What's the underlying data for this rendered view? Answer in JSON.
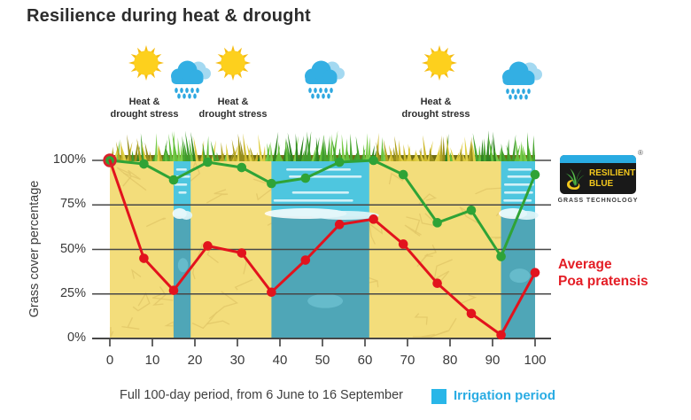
{
  "title": "Resilience during heat & drought",
  "weather": {
    "icons": [
      "sun",
      "rain-cloud",
      "sun",
      "rain-cloud",
      "sun",
      "rain-cloud"
    ],
    "stress_label": {
      "line1": "Heat &",
      "line2": "drought stress"
    }
  },
  "legend": {
    "irrigation_label": "Irrigation period",
    "swatch_color": "#29B6E8",
    "text_color": "#2AACE3"
  },
  "caption": "Full 100-day period, from 6 June to 16 September",
  "series_label": {
    "line1": "Average",
    "line2": "Poa pratensis"
  },
  "logo": {
    "brand_line1": "RESILIENT",
    "brand_line2": "BLUE",
    "registered_mark": "®",
    "subtitle": "GRASS TECHNOLOGY"
  },
  "chart_data": {
    "type": "line",
    "title": "Resilience during heat & drought",
    "xlabel": "Full 100-day period, from 6 June to 16 September",
    "ylabel": "Grass cover percentage",
    "x_ticks": [
      0,
      10,
      20,
      30,
      40,
      50,
      60,
      70,
      80,
      90,
      100
    ],
    "y_ticks": [
      "100%",
      "75%",
      "50%",
      "25%",
      "0%"
    ],
    "y_tick_values": [
      100,
      75,
      50,
      25,
      0
    ],
    "xlim": [
      0,
      100
    ],
    "ylim": [
      0,
      100
    ],
    "grid": true,
    "legend_position": "bottom-right",
    "x": [
      0,
      8,
      15,
      23,
      31,
      38,
      46,
      54,
      62,
      69,
      77,
      85,
      92,
      100
    ],
    "series": [
      {
        "name": "Resilient Blue",
        "color": "#2FA336",
        "values": [
          100,
          98,
          89,
          99,
          96,
          87,
          90,
          99,
          100,
          92,
          65,
          72,
          46,
          92
        ]
      },
      {
        "name": "Average Poa pratensis",
        "color": "#E2131D",
        "values": [
          100,
          45,
          27,
          52,
          48,
          26,
          44,
          64,
          67,
          53,
          31,
          14,
          2,
          37
        ]
      }
    ],
    "irrigation_periods": [
      [
        15,
        19
      ],
      [
        38,
        61
      ],
      [
        92,
        100
      ]
    ],
    "colors": {
      "ground": "#F3DD7B",
      "crack": "#E2C868",
      "irrigation_top": "#4EC6DF",
      "irrigation_bottom": "#4FA6B7",
      "grid": "#474747"
    }
  }
}
